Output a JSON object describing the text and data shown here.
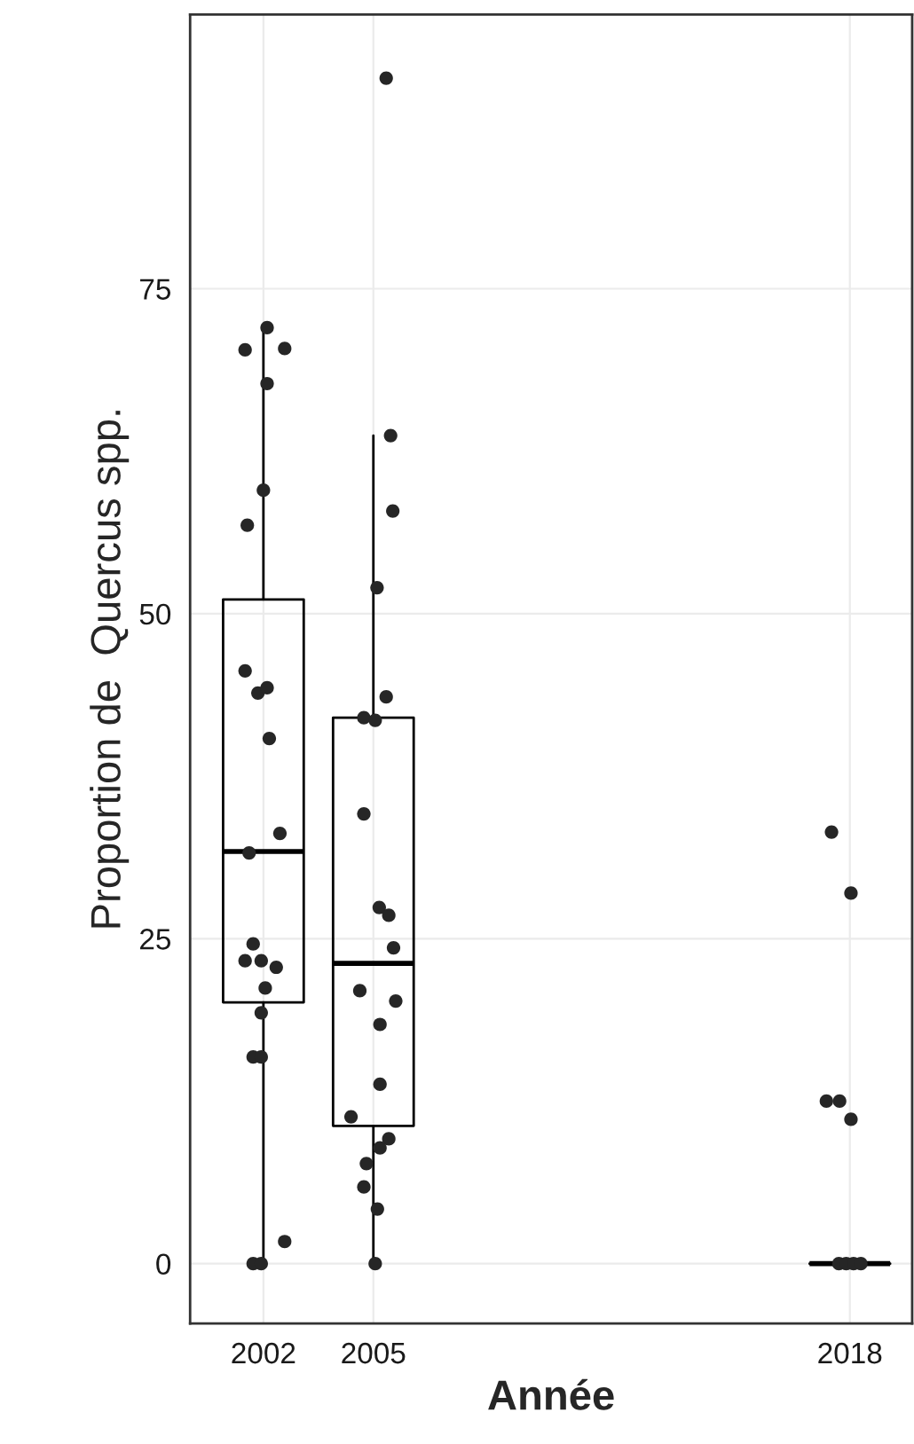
{
  "chart_data": {
    "type": "box",
    "xlabel": "Année",
    "ylabel": "Proportion de  Quercus spp.",
    "xlim": [
      2000,
      2019.7
    ],
    "xticks": [
      2002,
      2005,
      2018
    ],
    "ylim": [
      -4.6,
      96.1
    ],
    "yticks": [
      0,
      25,
      50,
      75
    ],
    "grid": true,
    "series": [
      {
        "color": "#000000",
        "x": [
          2002,
          2005,
          2018
        ],
        "boxes": [
          {
            "low": 0,
            "q1": 20.1,
            "median": 31.7,
            "q3": 51.1,
            "high": 72.0
          },
          {
            "low": 0,
            "q1": 10.6,
            "median": 23.1,
            "q3": 42.0,
            "high": 63.7
          },
          {
            "low": 0,
            "q1": 0,
            "median": 0,
            "q3": 0,
            "high": 0
          }
        ]
      },
      {
        "type": "scatter",
        "color": "#262626",
        "x": [
          2002.1,
          2001.5,
          2002.58,
          2002.1,
          2002.0,
          2001.56,
          2001.5,
          2001.85,
          2002.1,
          2002.16,
          2002.45,
          2001.61,
          2001.72,
          2001.5,
          2001.94,
          2002.35,
          2002.05,
          2001.94,
          2001.72,
          2001.94,
          2002.58,
          2001.72,
          2001.94,
          2005.35,
          2005.47,
          2005.53,
          2005.1,
          2005.35,
          2004.74,
          2005.05,
          2004.74,
          2005.16,
          2005.42,
          2005.55,
          2004.63,
          2005.61,
          2005.18,
          2005.18,
          2004.39,
          2005.42,
          2005.18,
          2004.81,
          2004.74,
          2005.11,
          2005.05,
          2017.5,
          2018.03,
          2017.36,
          2017.72,
          2018.03,
          2017.7,
          2017.9,
          2018.1,
          2018.3
        ],
        "values": [
          72.0,
          70.3,
          70.4,
          67.7,
          59.5,
          56.8,
          45.6,
          43.9,
          44.3,
          40.4,
          33.1,
          31.6,
          24.6,
          23.3,
          23.3,
          22.8,
          21.2,
          19.3,
          15.9,
          15.9,
          1.7,
          0,
          0,
          91.2,
          63.7,
          57.9,
          52.0,
          43.6,
          42.0,
          41.8,
          34.6,
          27.4,
          26.8,
          24.3,
          21.0,
          20.2,
          18.4,
          13.8,
          11.3,
          9.6,
          8.9,
          7.7,
          5.9,
          4.2,
          0,
          33.2,
          28.5,
          12.5,
          12.5,
          11.1,
          0,
          0,
          0,
          0
        ]
      }
    ]
  }
}
